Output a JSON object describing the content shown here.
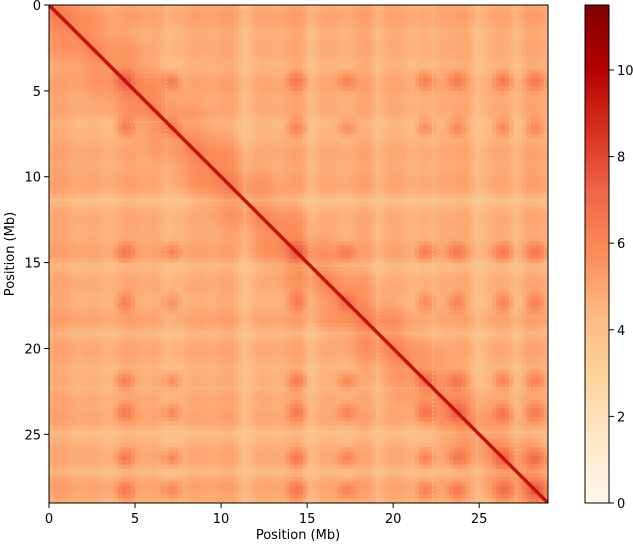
{
  "chart_data": {
    "type": "heatmap",
    "title": "",
    "xlabel": "Position (Mb)",
    "ylabel": "Position (Mb)",
    "xlim": [
      0,
      29
    ],
    "ylim": [
      29,
      0
    ],
    "xticks": [
      0,
      5,
      10,
      15,
      20,
      25
    ],
    "yticks": [
      0,
      5,
      10,
      15,
      20,
      25
    ],
    "colormap": "OrRd",
    "colorbar": {
      "range": [
        0,
        11.5
      ],
      "ticks": [
        0,
        2,
        4,
        6,
        8,
        10
      ],
      "colors": [
        "#fff7ec",
        "#fee8c8",
        "#fdd49e",
        "#fdbb84",
        "#fc8d59",
        "#ef6548",
        "#d7301f",
        "#b30000",
        "#7f0000"
      ]
    },
    "grid_lines_mb": [
      6.8,
      11.4,
      15.2,
      19.1,
      22.3,
      24.9,
      27.2
    ],
    "hotspots_mb": [
      4.4,
      7.1,
      14.4,
      17.3,
      21.9,
      23.7,
      26.4,
      28.3
    ],
    "value_levels": {
      "background": 4.8,
      "stripe": 4.1,
      "hotspot_cross": 6.3,
      "diagonal": 9.5
    }
  }
}
